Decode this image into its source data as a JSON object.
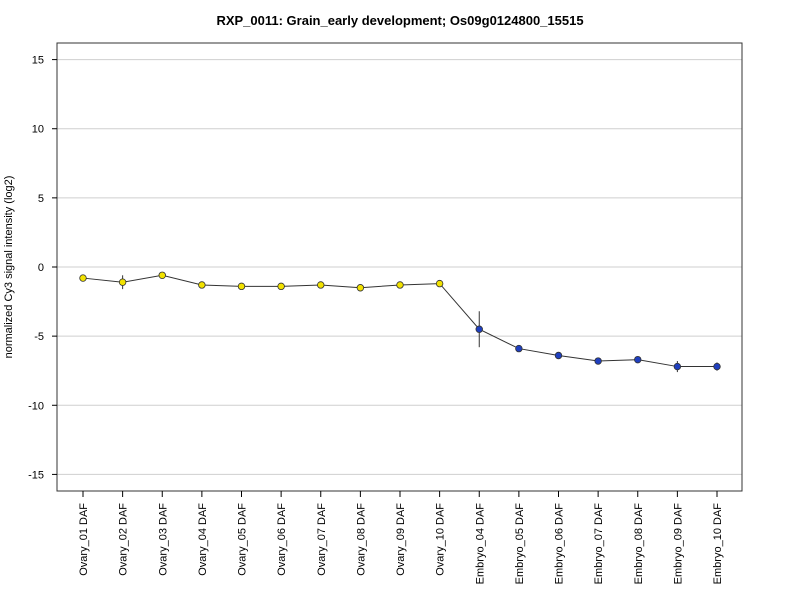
{
  "chart_data": {
    "type": "line",
    "title": "RXP_0011: Grain_early development; Os09g0124800_15515",
    "ylabel": "normalized Cy3 signal intensity (log2)",
    "xlabel": "",
    "categories": [
      "Ovary_01 DAF",
      "Ovary_02 DAF",
      "Ovary_03 DAF",
      "Ovary_04 DAF",
      "Ovary_05 DAF",
      "Ovary_06 DAF",
      "Ovary_07 DAF",
      "Ovary_08 DAF",
      "Ovary_09 DAF",
      "Ovary_10 DAF",
      "Embryo_04 DAF",
      "Embryo_05 DAF",
      "Embryo_06 DAF",
      "Embryo_07 DAF",
      "Embryo_08 DAF",
      "Embryo_09 DAF",
      "Embryo_10 DAF"
    ],
    "values": [
      -0.8,
      -1.1,
      -0.6,
      -1.3,
      -1.4,
      -1.4,
      -1.3,
      -1.5,
      -1.3,
      -1.2,
      -4.5,
      -5.9,
      -6.4,
      -6.8,
      -6.7,
      -7.2,
      -7.2
    ],
    "error": [
      0.15,
      0.5,
      0.15,
      0.15,
      0.15,
      0.15,
      0.15,
      0.2,
      0.15,
      0.15,
      1.3,
      0.2,
      0.15,
      0.15,
      0.15,
      0.4,
      0.3
    ],
    "point_colors": [
      "#f2e200",
      "#f2e200",
      "#f2e200",
      "#f2e200",
      "#f2e200",
      "#f2e200",
      "#f2e200",
      "#f2e200",
      "#f2e200",
      "#f2e200",
      "#1f3fbf",
      "#1f3fbf",
      "#1f3fbf",
      "#1f3fbf",
      "#1f3fbf",
      "#1f3fbf",
      "#1f3fbf"
    ],
    "ylim": [
      -16.2,
      16.2
    ],
    "yticks": [
      -15,
      -10,
      -5,
      0,
      5,
      10,
      15
    ],
    "grid": true
  }
}
